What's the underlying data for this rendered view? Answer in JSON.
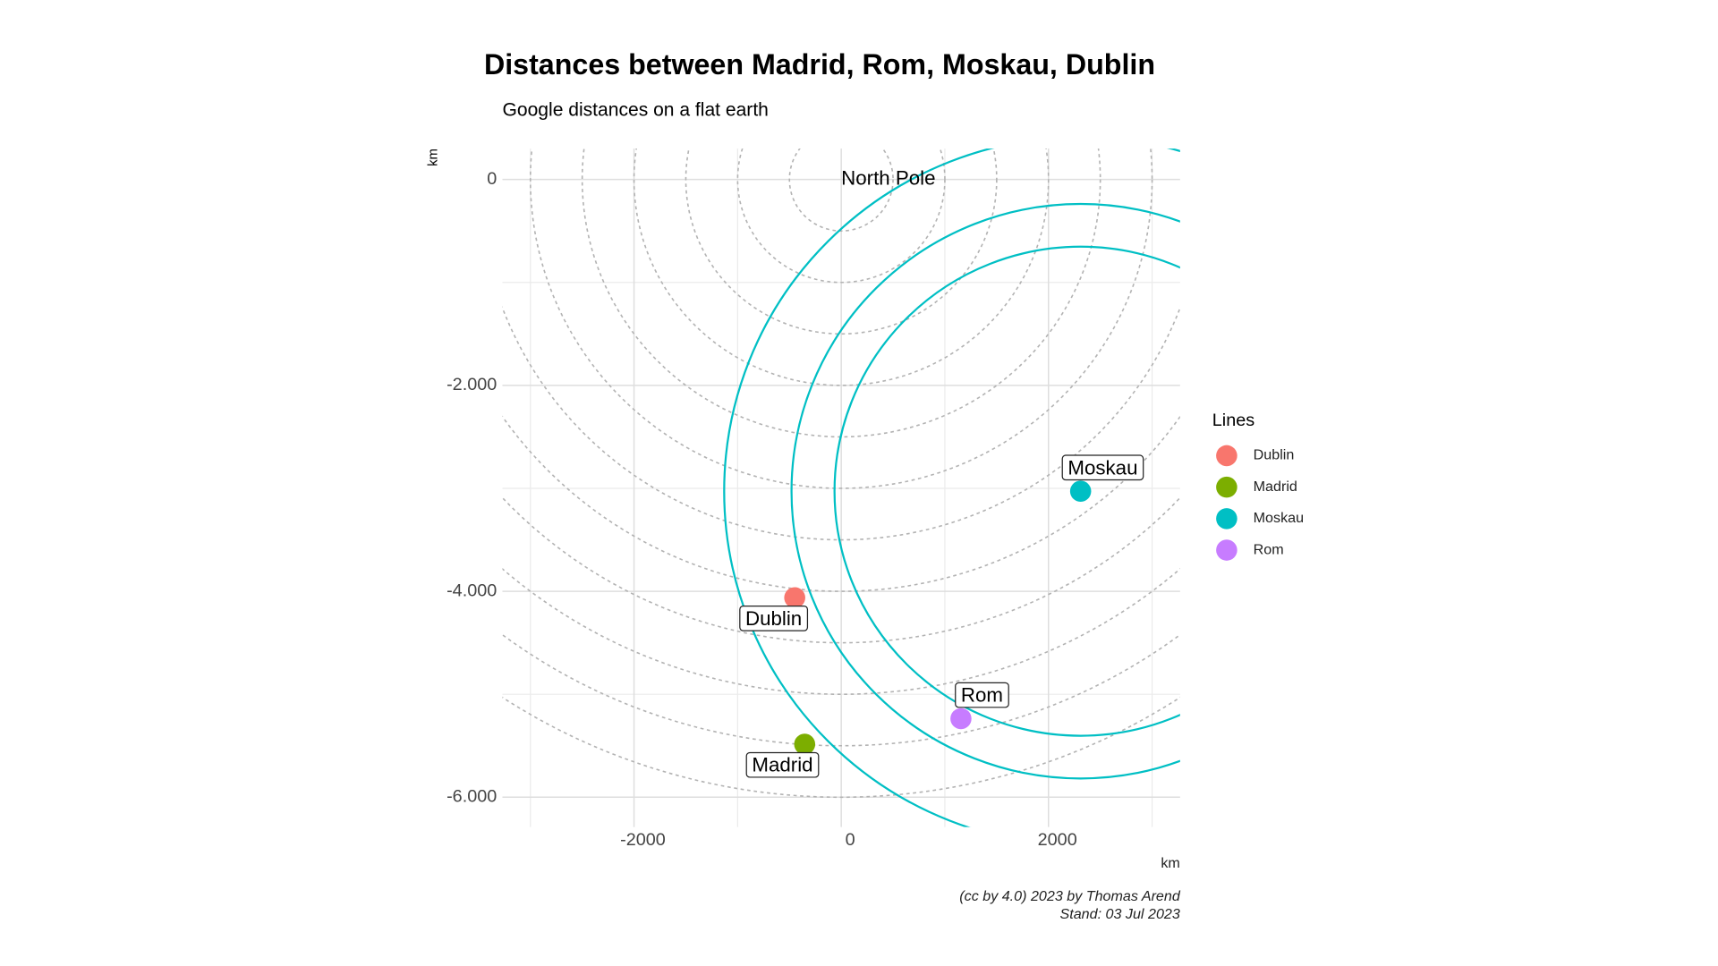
{
  "chart_data": {
    "type": "scatter",
    "title": "Distances between Madrid, Rom, Moskau, Dublin",
    "subtitle": "Google distances on a flat earth",
    "x_label": "km",
    "y_label": "km",
    "xlim": [
      -3270,
      3270
    ],
    "ylim": [
      -6290,
      300
    ],
    "xticks": [
      -2000,
      0,
      2000
    ],
    "yticks": [
      {
        "value": 0,
        "label": "0"
      },
      {
        "value": -2000,
        "label": "-2.000"
      },
      {
        "value": -4000,
        "label": "-4.000"
      },
      {
        "value": -6000,
        "label": "-6.000"
      }
    ],
    "x_minor_grid": [
      -3000,
      -1000,
      1000,
      3000
    ],
    "y_minor_grid": [
      -5000,
      -3000,
      -1000
    ],
    "grid": true,
    "annotation": {
      "text": "North Pole",
      "x": 0,
      "y": 0
    },
    "reference_radii": [
      500,
      1000,
      1500,
      2000,
      2500,
      3000,
      3500,
      4000,
      4500,
      5000,
      5500,
      6000
    ],
    "legend_title": "Lines",
    "legend_position": "right",
    "series": [
      {
        "name": "Dublin",
        "color": "#f8766d",
        "x": [
          -449
        ],
        "y": [
          -4062
        ]
      },
      {
        "name": "Madrid",
        "color": "#7cae00",
        "x": [
          -353
        ],
        "y": [
          -5485
        ]
      },
      {
        "name": "Moskau",
        "color": "#00bfc4",
        "x": [
          2310
        ],
        "y": [
          -3028
        ],
        "radii": [
          3440,
          2790,
          2375
        ]
      },
      {
        "name": "Rom",
        "color": "#c77cff",
        "x": [
          1155
        ],
        "y": [
          -5237
        ]
      }
    ],
    "caption": [
      "(cc by 4.0) 2023 by Thomas Arend",
      "Stand: 03 Jul 2023"
    ]
  }
}
